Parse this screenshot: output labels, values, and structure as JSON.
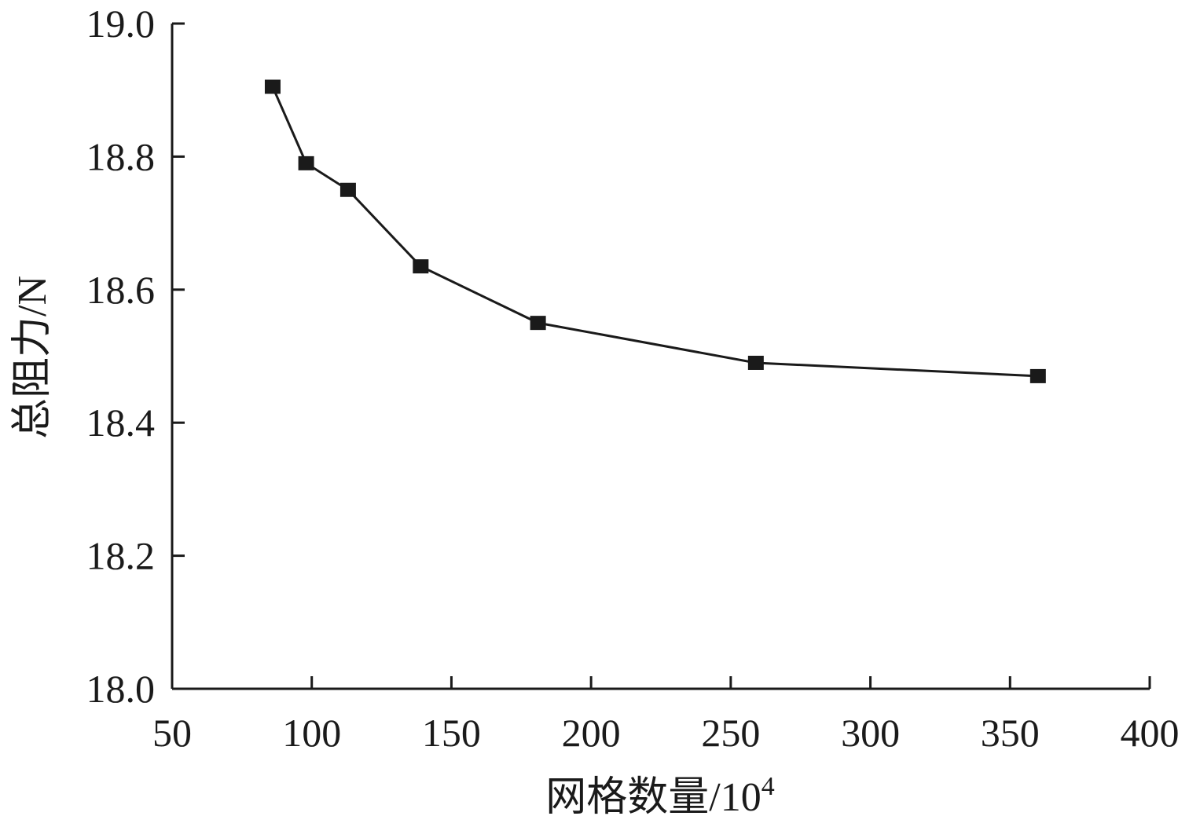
{
  "chart_data": {
    "type": "line",
    "title": "",
    "xlabel": "网格数量/10",
    "xlabel_superscript": "4",
    "ylabel": "总阻力/N",
    "xlim": [
      50,
      400
    ],
    "ylim": [
      18.0,
      19.0
    ],
    "xticks": [
      "50",
      "100",
      "150",
      "200",
      "250",
      "300",
      "350",
      "400"
    ],
    "yticks": [
      "18.0",
      "18.2",
      "18.4",
      "18.6",
      "18.8",
      "19.0"
    ],
    "grid": false,
    "legend": "none",
    "series": [
      {
        "x": [
          86,
          98,
          113,
          139,
          181,
          259,
          360
        ],
        "y": [
          18.905,
          18.79,
          18.75,
          18.635,
          18.55,
          18.49,
          18.47
        ],
        "marker": "square",
        "color": "#1a1a1a"
      }
    ]
  }
}
